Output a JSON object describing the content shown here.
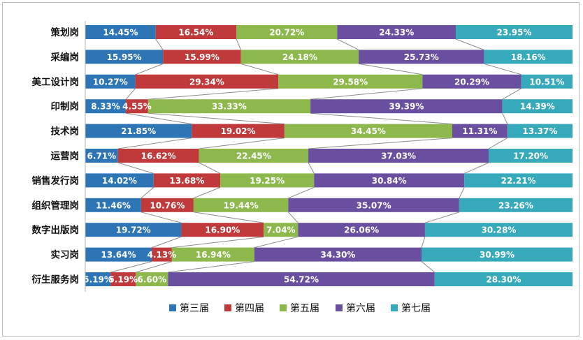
{
  "chart_data": {
    "type": "bar",
    "stacked": true,
    "orientation": "horizontal",
    "normalized": true,
    "title": "",
    "xlabel": "",
    "ylabel": "",
    "xlim": [
      0,
      100
    ],
    "legend_position": "bottom",
    "categories": [
      "策划岗",
      "采编岗",
      "美工设计岗",
      "印制岗",
      "技术岗",
      "运营岗",
      "销售发行岗",
      "组织管理岗",
      "数字出版岗",
      "实习岗",
      "衍生服务岗"
    ],
    "series": [
      {
        "name": "第三届",
        "color": "#2e75b6",
        "values": [
          14.45,
          15.95,
          10.27,
          8.33,
          21.85,
          6.71,
          14.02,
          11.46,
          19.72,
          13.64,
          5.19
        ]
      },
      {
        "name": "第四届",
        "color": "#c0393b",
        "values": [
          16.54,
          15.99,
          29.34,
          4.55,
          19.02,
          16.62,
          13.68,
          10.76,
          16.9,
          4.13,
          5.19
        ]
      },
      {
        "name": "第五届",
        "color": "#8db84c",
        "values": [
          20.72,
          24.18,
          29.58,
          33.33,
          34.45,
          22.45,
          19.25,
          19.44,
          7.04,
          16.94,
          6.6
        ]
      },
      {
        "name": "第六届",
        "color": "#6a4fa0",
        "values": [
          24.33,
          25.73,
          20.29,
          39.39,
          11.31,
          37.03,
          30.84,
          35.07,
          26.06,
          34.3,
          54.72
        ]
      },
      {
        "name": "第七届",
        "color": "#36a9bb",
        "values": [
          23.95,
          18.16,
          10.51,
          14.39,
          13.37,
          17.2,
          22.21,
          23.26,
          30.28,
          30.99,
          28.3
        ]
      }
    ],
    "labels": [
      [
        "14.45%",
        "16.54%",
        "20.72%",
        "24.33%",
        "23.95%"
      ],
      [
        "15.95%",
        "15.99%",
        "24.18%",
        "25.73%",
        "18.16%"
      ],
      [
        "10.27%",
        "29.34%",
        "29.58%",
        "20.29%",
        "10.51%"
      ],
      [
        "8.33%",
        "4.55%",
        "33.33%",
        "39.39%",
        "14.39%"
      ],
      [
        "21.85%",
        "19.02%",
        "34.45%",
        "11.31%",
        "13.37%"
      ],
      [
        "6.71%",
        "16.62%",
        "22.45%",
        "37.03%",
        "17.20%"
      ],
      [
        "14.02%",
        "13.68%",
        "19.25%",
        "30.84%",
        "22.21%"
      ],
      [
        "11.46%",
        "10.76%",
        "19.44%",
        "35.07%",
        "23.26%"
      ],
      [
        "19.72%",
        "16.90%",
        "7.04%",
        "26.06%",
        "30.28%"
      ],
      [
        "13.64%",
        "4.13%",
        "16.94%",
        "34.30%",
        "30.99%"
      ],
      [
        "5.19%",
        "5.19%",
        "6.60%",
        "54.72%",
        "28.30%"
      ]
    ],
    "series_lines": true
  }
}
